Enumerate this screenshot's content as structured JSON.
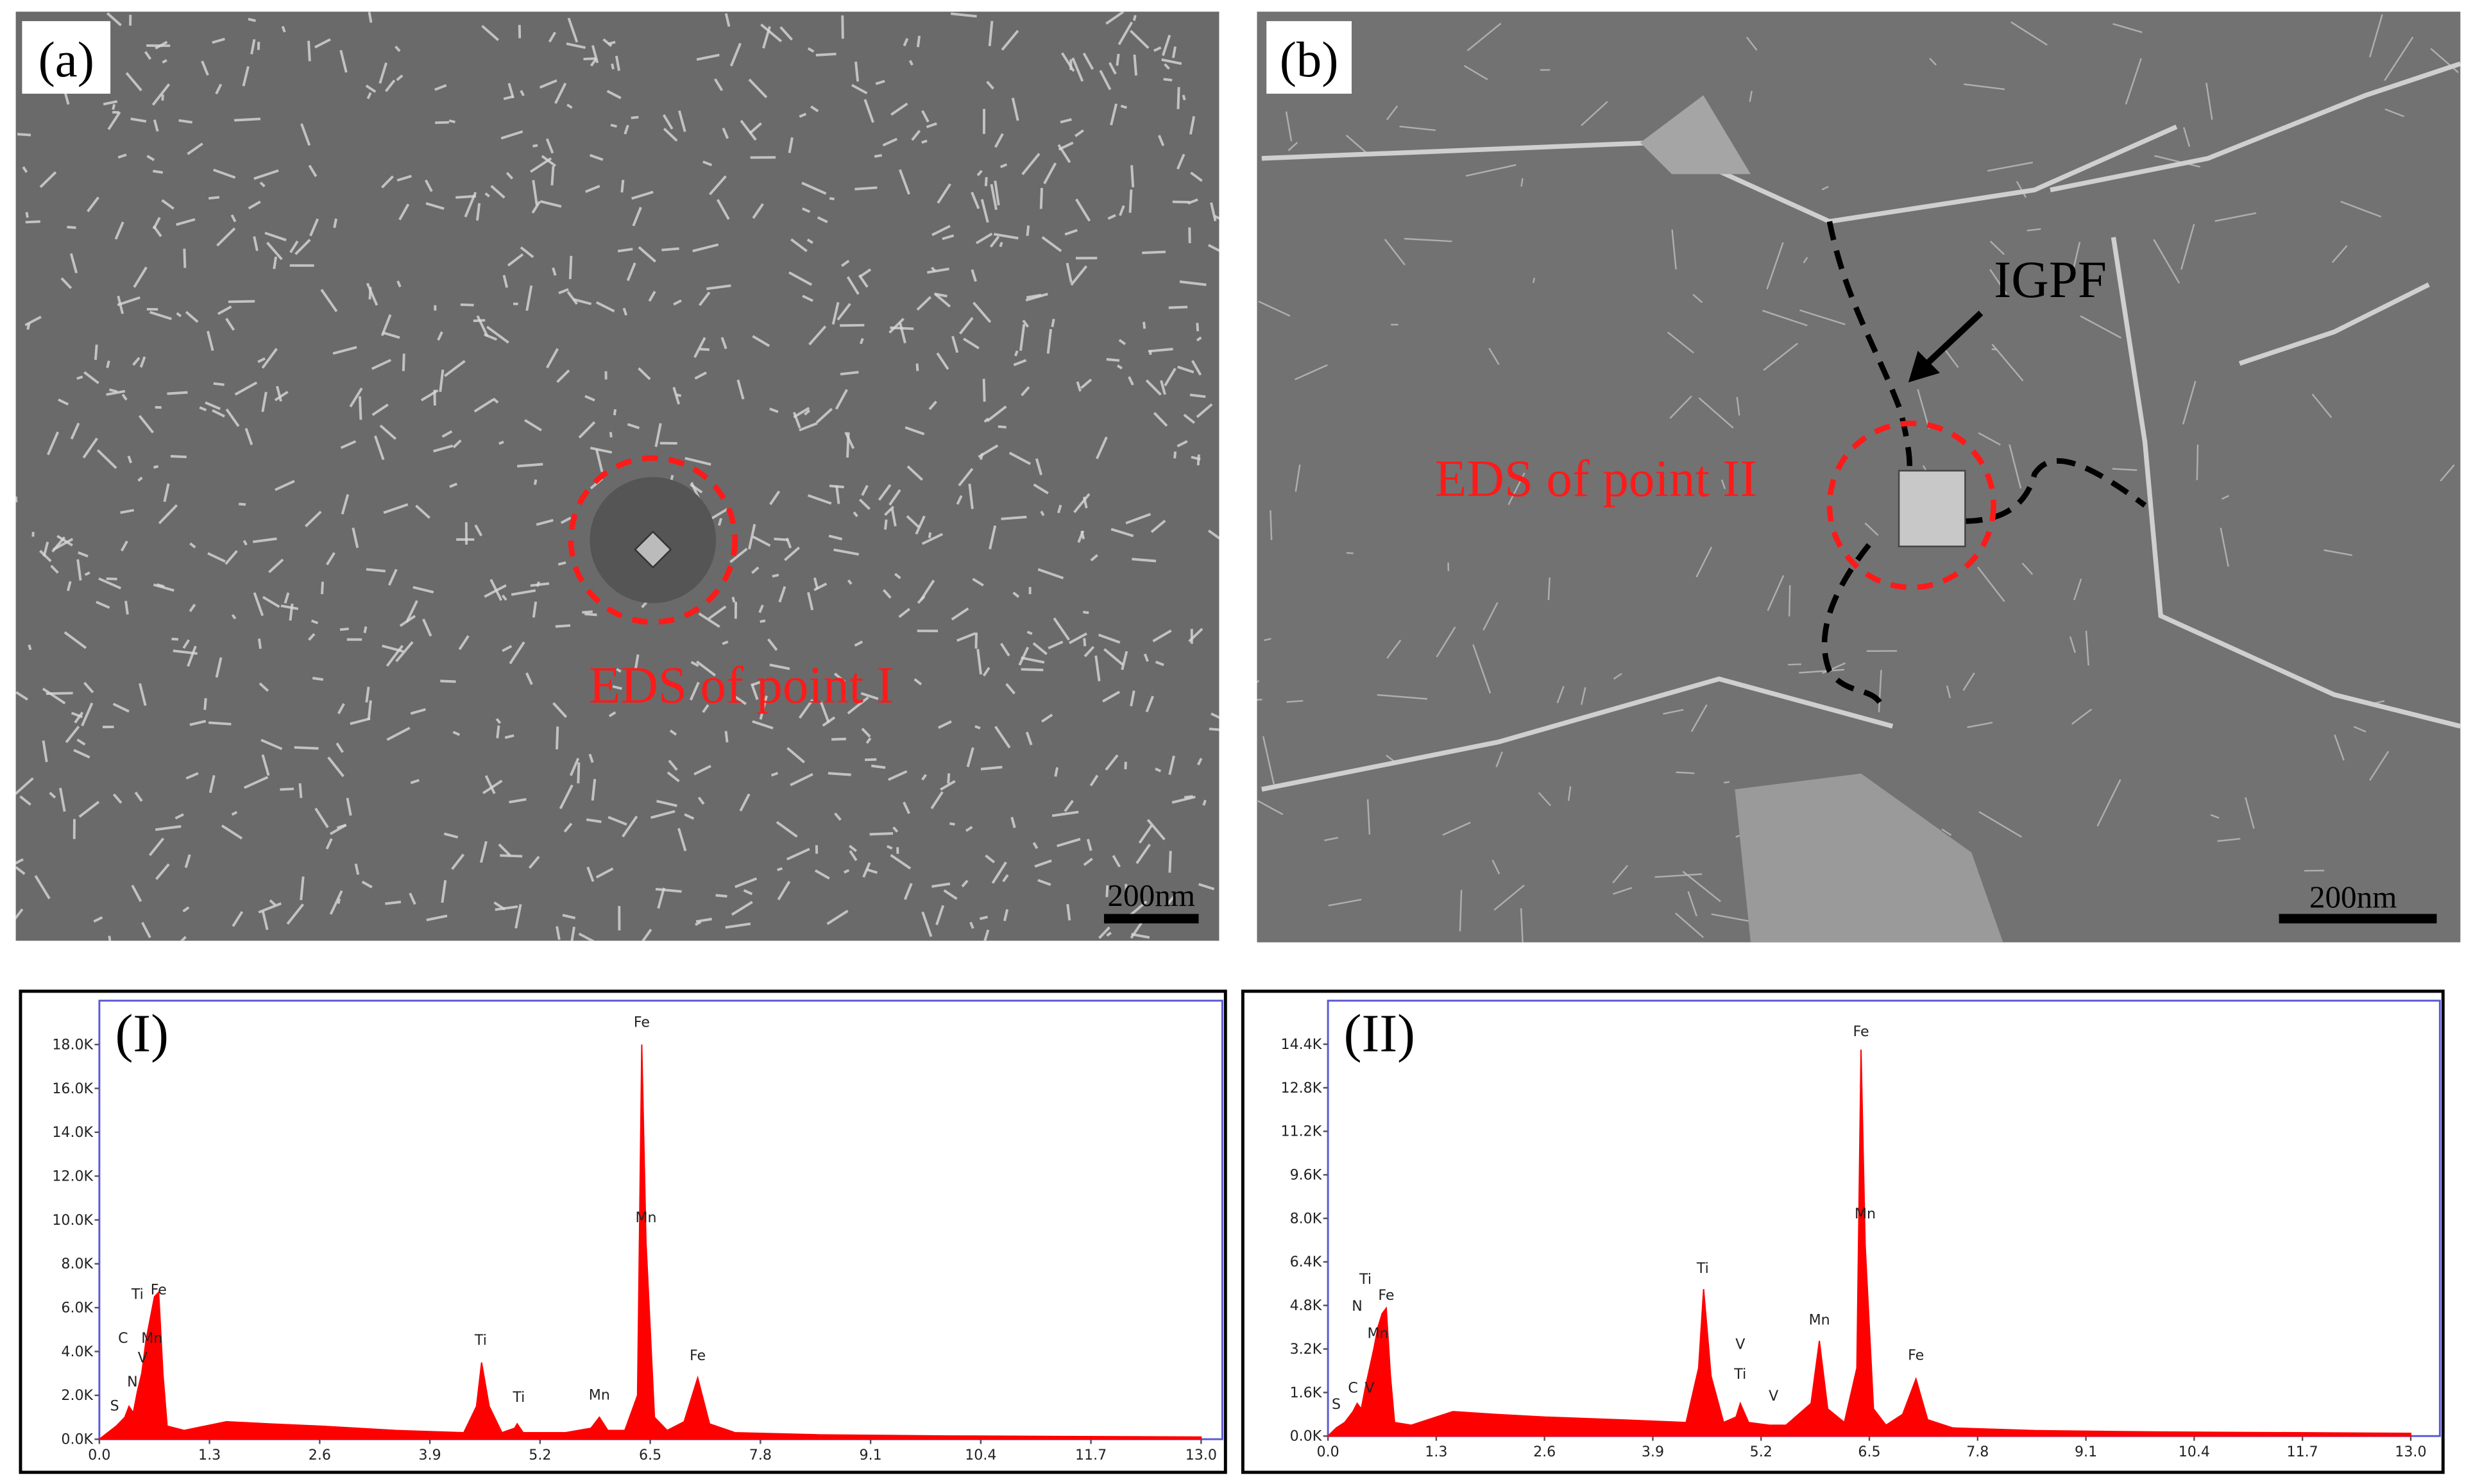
{
  "panels": [
    {
      "label": "(a)",
      "scale": "200nm",
      "annotation": "EDS of point I"
    },
    {
      "label": "(b)",
      "scale": "200nm",
      "annotations": [
        "IGPF",
        "EDS of point II"
      ]
    }
  ],
  "chart_data": [
    {
      "type": "area",
      "title": "(I)",
      "color": "#ff0000",
      "xlim": [
        0,
        13.25
      ],
      "ylim": [
        0,
        20000
      ],
      "xticks": [
        {
          "value": 0,
          "label": "0.0"
        },
        1.3,
        2.6,
        3.9,
        5.2,
        6.5,
        7.8,
        9.1,
        10.4,
        11.7,
        {
          "value": 13,
          "label": "13.0"
        }
      ],
      "yticks": [
        {
          "value": 0,
          "label": "0.0K"
        },
        {
          "value": 2000,
          "label": "2.0K"
        },
        {
          "value": 4000,
          "label": "4.0K"
        },
        {
          "value": 6000,
          "label": "6.0K"
        },
        {
          "value": 8000,
          "label": "8.0K"
        },
        {
          "value": 10000,
          "label": "10.0K"
        },
        {
          "value": 12000,
          "label": "12.0K"
        },
        {
          "value": 14000,
          "label": "14.0K"
        },
        {
          "value": 16000,
          "label": "16.0K"
        },
        {
          "value": 18000,
          "label": "18.0K"
        }
      ],
      "x": [
        0,
        0.1,
        0.2,
        0.3,
        0.35,
        0.4,
        0.45,
        0.5,
        0.55,
        0.6,
        0.65,
        0.7,
        0.75,
        0.8,
        1.0,
        1.5,
        2.0,
        2.6,
        3.5,
        4.3,
        4.45,
        4.51,
        4.6,
        4.75,
        4.9,
        4.93,
        5.0,
        5.5,
        5.8,
        5.9,
        6.0,
        6.2,
        6.35,
        6.4,
        6.45,
        6.55,
        6.7,
        6.9,
        7.06,
        7.2,
        7.5,
        8.5,
        10,
        13
      ],
      "values": [
        0,
        300,
        600,
        1000,
        1500,
        1200,
        2200,
        3000,
        4500,
        5500,
        6500,
        6700,
        3000,
        600,
        400,
        800,
        700,
        600,
        400,
        300,
        1500,
        3500,
        1500,
        300,
        500,
        700,
        300,
        300,
        500,
        1000,
        400,
        400,
        2000,
        18000,
        9000,
        1000,
        400,
        800,
        2800,
        700,
        300,
        200,
        150,
        100
      ],
      "annotations": [
        {
          "text": "S",
          "x": 0.18,
          "y": 1300
        },
        {
          "text": "N",
          "x": 0.39,
          "y": 2400
        },
        {
          "text": "V",
          "x": 0.51,
          "y": 3500
        },
        {
          "text": "C",
          "x": 0.28,
          "y": 4400
        },
        {
          "text": "Mn",
          "x": 0.62,
          "y": 4400
        },
        {
          "text": "Ti",
          "x": 0.45,
          "y": 6400
        },
        {
          "text": "Fe",
          "x": 0.7,
          "y": 6600
        },
        {
          "text": "Ti",
          "x": 4.5,
          "y": 4300
        },
        {
          "text": "Ti",
          "x": 4.95,
          "y": 1700
        },
        {
          "text": "Mn",
          "x": 5.9,
          "y": 1800
        },
        {
          "text": "Fe",
          "x": 6.4,
          "y": 18800
        },
        {
          "text": "Mn",
          "x": 6.45,
          "y": 9900
        },
        {
          "text": "Fe",
          "x": 7.06,
          "y": 3600
        }
      ]
    },
    {
      "type": "area",
      "title": "(II)",
      "color": "#ff0000",
      "xlim": [
        0,
        13.35
      ],
      "ylim": [
        0,
        16000
      ],
      "xticks": [
        {
          "value": 0,
          "label": "0.0"
        },
        1.3,
        2.6,
        3.9,
        5.2,
        6.5,
        7.8,
        9.1,
        10.4,
        11.7,
        {
          "value": 13,
          "label": "13.0"
        }
      ],
      "yticks": [
        {
          "value": 0,
          "label": "0.0K"
        },
        {
          "value": 1600,
          "label": "1.6K"
        },
        {
          "value": 3200,
          "label": "3.2K"
        },
        {
          "value": 4800,
          "label": "4.8K"
        },
        {
          "value": 6400,
          "label": "6.4K"
        },
        {
          "value": 8000,
          "label": "8.0K"
        },
        {
          "value": 9600,
          "label": "9.6K"
        },
        {
          "value": 11200,
          "label": "11.2K"
        },
        {
          "value": 12800,
          "label": "12.8K"
        },
        {
          "value": 14400,
          "label": "14.4K"
        }
      ],
      "x": [
        0,
        0.1,
        0.2,
        0.3,
        0.35,
        0.4,
        0.45,
        0.5,
        0.55,
        0.6,
        0.65,
        0.7,
        0.75,
        0.8,
        1.0,
        1.5,
        2.0,
        2.6,
        3.5,
        4.3,
        4.45,
        4.51,
        4.6,
        4.75,
        4.9,
        4.95,
        5.05,
        5.3,
        5.5,
        5.8,
        5.9,
        6.0,
        6.2,
        6.35,
        6.4,
        6.45,
        6.55,
        6.7,
        6.9,
        7.06,
        7.2,
        7.5,
        8.5,
        10,
        13
      ],
      "values": [
        0,
        300,
        500,
        900,
        1200,
        1000,
        1800,
        2500,
        3200,
        4000,
        4500,
        4700,
        2200,
        500,
        400,
        900,
        800,
        700,
        600,
        500,
        2500,
        5400,
        2200,
        500,
        700,
        1200,
        500,
        400,
        400,
        1200,
        3500,
        1000,
        500,
        2500,
        14200,
        7000,
        1000,
        400,
        800,
        2100,
        600,
        300,
        200,
        150,
        100
      ],
      "annotations": [
        {
          "text": "S",
          "x": 0.1,
          "y": 1000
        },
        {
          "text": "C",
          "x": 0.3,
          "y": 1600
        },
        {
          "text": "V",
          "x": 0.5,
          "y": 1600
        },
        {
          "text": "N",
          "x": 0.35,
          "y": 4600
        },
        {
          "text": "Ti",
          "x": 0.45,
          "y": 5600
        },
        {
          "text": "Fe",
          "x": 0.7,
          "y": 5000
        },
        {
          "text": "Mn",
          "x": 0.6,
          "y": 3600
        },
        {
          "text": "Ti",
          "x": 4.5,
          "y": 6000
        },
        {
          "text": "V",
          "x": 4.95,
          "y": 3200
        },
        {
          "text": "Ti",
          "x": 4.95,
          "y": 2100
        },
        {
          "text": "V",
          "x": 5.35,
          "y": 1300
        },
        {
          "text": "Mn",
          "x": 5.9,
          "y": 4100
        },
        {
          "text": "Fe",
          "x": 6.4,
          "y": 14700
        },
        {
          "text": "Mn",
          "x": 6.45,
          "y": 8000
        },
        {
          "text": "Fe",
          "x": 7.06,
          "y": 2800
        }
      ]
    }
  ]
}
